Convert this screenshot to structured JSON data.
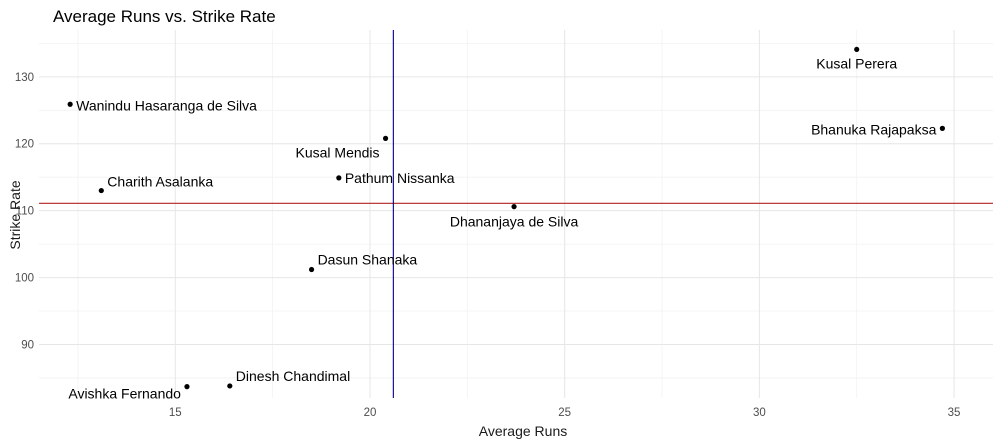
{
  "chart_data": {
    "type": "scatter",
    "title": "Average Runs vs. Strike Rate",
    "xlabel": "Average Runs",
    "ylabel": "Strike Rate",
    "xlim": [
      11.5,
      36
    ],
    "ylim": [
      82,
      137
    ],
    "x_ticks": [
      15,
      20,
      25,
      30,
      35
    ],
    "y_ticks": [
      90,
      100,
      110,
      120,
      130
    ],
    "grid": true,
    "reference_lines": {
      "vertical_x": 20.6,
      "vertical_color": "#00008b",
      "horizontal_y": 111.1,
      "horizontal_color": "#b22222"
    },
    "points": [
      {
        "label": "Kusal Perera",
        "x": 32.5,
        "y": 134.1,
        "anchor": "middle",
        "dy": 19
      },
      {
        "label": "Wanindu Hasaranga de Silva",
        "x": 12.3,
        "y": 125.9,
        "anchor": "start",
        "dy": 6
      },
      {
        "label": "Bhanuka Rajapaksa",
        "x": 34.7,
        "y": 122.3,
        "anchor": "end",
        "dy": 6
      },
      {
        "label": "Kusal Mendis",
        "x": 20.4,
        "y": 120.8,
        "anchor": "end",
        "dy": 19
      },
      {
        "label": "Pathum Nissanka",
        "x": 19.2,
        "y": 114.9,
        "anchor": "start",
        "dy": 0
      },
      {
        "label": "Charith Asalanka",
        "x": 13.1,
        "y": 113.0,
        "anchor": "start",
        "dy": -4
      },
      {
        "label": "Dhananjaya de Silva",
        "x": 23.7,
        "y": 110.6,
        "anchor": "middle",
        "dy": 20
      },
      {
        "label": "Dasun Shanaka",
        "x": 18.5,
        "y": 101.2,
        "anchor": "start",
        "dy": -5
      },
      {
        "label": "Dinesh Chandimal",
        "x": 16.4,
        "y": 83.8,
        "anchor": "start",
        "dy": -5
      },
      {
        "label": "Avishka Fernando",
        "x": 15.3,
        "y": 83.7,
        "anchor": "end",
        "dy": 12
      }
    ],
    "colors": {
      "points": "#000000",
      "background": "#ffffff"
    }
  }
}
